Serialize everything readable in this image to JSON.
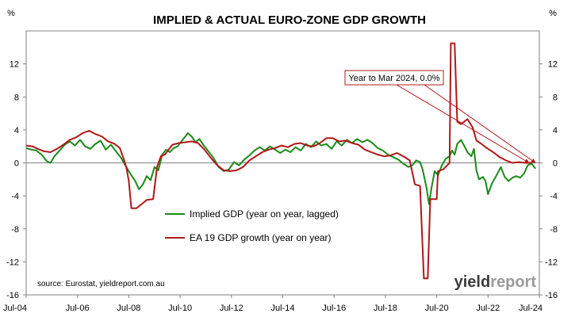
{
  "chart_data": {
    "type": "line",
    "title": "IMPLIED & ACTUAL EURO-ZONE GDP GROWTH",
    "left_unit": "%",
    "right_unit": "%",
    "ylim": [
      -16,
      16
    ],
    "y_ticks": [
      {
        "value": 12,
        "label": "12"
      },
      {
        "value": 8,
        "label": "8"
      },
      {
        "value": 4,
        "label": "4"
      },
      {
        "value": 0,
        "label": "0"
      },
      {
        "value": -4,
        "label": "-4"
      },
      {
        "value": -8,
        "label": "-8"
      },
      {
        "value": -12,
        "label": "-12"
      },
      {
        "value": -16,
        "label": "-16"
      }
    ],
    "xlim": [
      2004.5,
      2024.5
    ],
    "x_ticks": [
      {
        "value": 2004.5,
        "label": "Jul-04"
      },
      {
        "value": 2006.5,
        "label": "Jul-06"
      },
      {
        "value": 2008.5,
        "label": "Jul-08"
      },
      {
        "value": 2010.5,
        "label": "Jul-10"
      },
      {
        "value": 2012.5,
        "label": "Jul-12"
      },
      {
        "value": 2014.5,
        "label": "Jul-14"
      },
      {
        "value": 2016.5,
        "label": "Jul-16"
      },
      {
        "value": 2018.5,
        "label": "Jul-18"
      },
      {
        "value": 2020.5,
        "label": "Jul-20"
      },
      {
        "value": 2022.5,
        "label": "Jul-22"
      },
      {
        "value": 2024.5,
        "label": "Jul-24"
      }
    ],
    "series": [
      {
        "name": "Implied GDP (year on year, lagged)",
        "color": "#1a8a1a",
        "points": [
          [
            2004.5,
            1.8
          ],
          [
            2004.7,
            1.6
          ],
          [
            2004.9,
            1.5
          ],
          [
            2005.1,
            1.0
          ],
          [
            2005.3,
            0.2
          ],
          [
            2005.45,
            0.0
          ],
          [
            2005.6,
            0.8
          ],
          [
            2005.8,
            1.5
          ],
          [
            2006.0,
            2.2
          ],
          [
            2006.2,
            2.6
          ],
          [
            2006.4,
            2.1
          ],
          [
            2006.6,
            2.8
          ],
          [
            2006.8,
            2.0
          ],
          [
            2007.0,
            1.7
          ],
          [
            2007.2,
            2.3
          ],
          [
            2007.4,
            2.7
          ],
          [
            2007.6,
            1.6
          ],
          [
            2007.8,
            2.2
          ],
          [
            2008.0,
            1.4
          ],
          [
            2008.2,
            0.6
          ],
          [
            2008.4,
            -0.5
          ],
          [
            2008.6,
            -1.5
          ],
          [
            2008.75,
            -2.2
          ],
          [
            2008.9,
            -3.2
          ],
          [
            2009.05,
            -2.6
          ],
          [
            2009.2,
            -1.6
          ],
          [
            2009.35,
            -2.1
          ],
          [
            2009.5,
            -0.5
          ],
          [
            2009.65,
            -0.9
          ],
          [
            2009.8,
            1.0
          ],
          [
            2009.95,
            1.6
          ],
          [
            2010.1,
            1.3
          ],
          [
            2010.25,
            1.8
          ],
          [
            2010.4,
            2.0
          ],
          [
            2010.55,
            2.6
          ],
          [
            2010.7,
            3.2
          ],
          [
            2010.8,
            3.6
          ],
          [
            2010.95,
            3.2
          ],
          [
            2011.1,
            2.5
          ],
          [
            2011.25,
            2.9
          ],
          [
            2011.4,
            2.2
          ],
          [
            2011.6,
            1.4
          ],
          [
            2011.8,
            0.6
          ],
          [
            2012.0,
            -0.5
          ],
          [
            2012.2,
            -1.0
          ],
          [
            2012.4,
            -0.8
          ],
          [
            2012.6,
            0.1
          ],
          [
            2012.8,
            -0.3
          ],
          [
            2013.0,
            0.4
          ],
          [
            2013.2,
            0.9
          ],
          [
            2013.4,
            1.5
          ],
          [
            2013.6,
            1.9
          ],
          [
            2013.8,
            1.5
          ],
          [
            2014.0,
            2.0
          ],
          [
            2014.2,
            1.6
          ],
          [
            2014.4,
            1.2
          ],
          [
            2014.6,
            1.6
          ],
          [
            2014.8,
            1.3
          ],
          [
            2015.0,
            1.9
          ],
          [
            2015.2,
            1.5
          ],
          [
            2015.4,
            2.3
          ],
          [
            2015.6,
            1.9
          ],
          [
            2015.8,
            2.6
          ],
          [
            2016.0,
            2.1
          ],
          [
            2016.2,
            2.3
          ],
          [
            2016.4,
            1.7
          ],
          [
            2016.6,
            2.6
          ],
          [
            2016.8,
            2.1
          ],
          [
            2017.0,
            2.8
          ],
          [
            2017.2,
            2.4
          ],
          [
            2017.4,
            2.9
          ],
          [
            2017.6,
            2.5
          ],
          [
            2017.8,
            2.8
          ],
          [
            2018.0,
            2.4
          ],
          [
            2018.2,
            1.8
          ],
          [
            2018.4,
            1.5
          ],
          [
            2018.6,
            1.0
          ],
          [
            2018.8,
            0.7
          ],
          [
            2019.0,
            0.4
          ],
          [
            2019.2,
            -0.1
          ],
          [
            2019.4,
            -0.5
          ],
          [
            2019.55,
            -0.3
          ],
          [
            2019.7,
            0.3
          ],
          [
            2019.85,
            0.1
          ],
          [
            2019.95,
            -0.8
          ],
          [
            2020.1,
            -3.0
          ],
          [
            2020.2,
            -5.0
          ],
          [
            2020.3,
            -3.0
          ],
          [
            2020.42,
            -1.0
          ],
          [
            2020.55,
            -1.5
          ],
          [
            2020.7,
            -0.3
          ],
          [
            2020.85,
            0.5
          ],
          [
            2021.0,
            0.8
          ],
          [
            2021.1,
            1.5
          ],
          [
            2021.2,
            1.0
          ],
          [
            2021.3,
            2.3
          ],
          [
            2021.45,
            2.8
          ],
          [
            2021.55,
            2.2
          ],
          [
            2021.7,
            1.3
          ],
          [
            2021.85,
            0.8
          ],
          [
            2021.95,
            1.7
          ],
          [
            2022.05,
            -0.9
          ],
          [
            2022.15,
            -2.0
          ],
          [
            2022.3,
            -1.7
          ],
          [
            2022.4,
            -2.2
          ],
          [
            2022.5,
            -3.8
          ],
          [
            2022.65,
            -2.5
          ],
          [
            2022.85,
            -1.4
          ],
          [
            2023.0,
            -0.5
          ],
          [
            2023.15,
            -1.7
          ],
          [
            2023.3,
            -2.2
          ],
          [
            2023.45,
            -1.8
          ],
          [
            2023.6,
            -1.6
          ],
          [
            2023.75,
            -1.8
          ],
          [
            2023.9,
            -1.3
          ],
          [
            2024.05,
            -0.3
          ],
          [
            2024.2,
            -0.1
          ],
          [
            2024.35,
            -0.7
          ]
        ]
      },
      {
        "name": "EA 19 GDP growth (year on year)",
        "color": "#b01818",
        "points": [
          [
            2004.5,
            2.1
          ],
          [
            2004.75,
            2.0
          ],
          [
            2004.95,
            1.7
          ],
          [
            2005.2,
            1.4
          ],
          [
            2005.45,
            1.3
          ],
          [
            2005.7,
            1.7
          ],
          [
            2005.95,
            2.2
          ],
          [
            2006.2,
            2.8
          ],
          [
            2006.45,
            3.1
          ],
          [
            2006.7,
            3.6
          ],
          [
            2006.95,
            3.9
          ],
          [
            2007.2,
            3.5
          ],
          [
            2007.45,
            3.2
          ],
          [
            2007.7,
            2.6
          ],
          [
            2007.95,
            2.3
          ],
          [
            2008.15,
            1.8
          ],
          [
            2008.3,
            0.5
          ],
          [
            2008.4,
            -0.5
          ],
          [
            2008.5,
            -2.2
          ],
          [
            2008.6,
            -5.5
          ],
          [
            2008.8,
            -5.5
          ],
          [
            2009.0,
            -5.0
          ],
          [
            2009.2,
            -4.5
          ],
          [
            2009.45,
            -4.4
          ],
          [
            2009.6,
            -0.5
          ],
          [
            2009.75,
            0.8
          ],
          [
            2009.9,
            1.0
          ],
          [
            2010.2,
            2.2
          ],
          [
            2010.45,
            2.4
          ],
          [
            2010.7,
            2.5
          ],
          [
            2010.95,
            2.6
          ],
          [
            2011.2,
            2.4
          ],
          [
            2011.45,
            1.6
          ],
          [
            2011.7,
            0.6
          ],
          [
            2011.95,
            -0.3
          ],
          [
            2012.2,
            -0.9
          ],
          [
            2012.45,
            -1.0
          ],
          [
            2012.7,
            -0.9
          ],
          [
            2012.95,
            -0.5
          ],
          [
            2013.2,
            0.3
          ],
          [
            2013.45,
            0.8
          ],
          [
            2013.7,
            1.3
          ],
          [
            2013.95,
            1.6
          ],
          [
            2014.2,
            1.8
          ],
          [
            2014.45,
            2.1
          ],
          [
            2014.7,
            1.9
          ],
          [
            2014.95,
            2.3
          ],
          [
            2015.2,
            2.4
          ],
          [
            2015.45,
            2.1
          ],
          [
            2015.7,
            2.0
          ],
          [
            2015.95,
            2.4
          ],
          [
            2016.2,
            3.0
          ],
          [
            2016.45,
            3.0
          ],
          [
            2016.7,
            2.6
          ],
          [
            2016.95,
            2.7
          ],
          [
            2017.2,
            2.4
          ],
          [
            2017.45,
            2.2
          ],
          [
            2017.7,
            1.6
          ],
          [
            2017.95,
            1.3
          ],
          [
            2018.2,
            1.0
          ],
          [
            2018.45,
            0.8
          ],
          [
            2018.7,
            0.9
          ],
          [
            2018.95,
            1.2
          ],
          [
            2019.2,
            0.8
          ],
          [
            2019.45,
            0.3
          ],
          [
            2019.65,
            -2.6
          ],
          [
            2019.85,
            -2.8
          ],
          [
            2020.0,
            -14.0
          ],
          [
            2020.15,
            -14.0
          ],
          [
            2020.25,
            -4.4
          ],
          [
            2020.5,
            -4.4
          ],
          [
            2020.55,
            -1.0
          ],
          [
            2020.75,
            -0.8
          ],
          [
            2021.0,
            0.0
          ],
          [
            2021.05,
            14.5
          ],
          [
            2021.2,
            14.5
          ],
          [
            2021.3,
            5.0
          ],
          [
            2021.45,
            4.7
          ],
          [
            2021.7,
            5.3
          ],
          [
            2021.9,
            4.3
          ],
          [
            2022.05,
            2.7
          ],
          [
            2022.2,
            2.4
          ],
          [
            2022.45,
            1.8
          ],
          [
            2022.7,
            1.3
          ],
          [
            2022.95,
            0.7
          ],
          [
            2023.2,
            0.3
          ],
          [
            2023.45,
            0.0
          ],
          [
            2023.7,
            0.1
          ],
          [
            2023.95,
            0.0
          ],
          [
            2024.2,
            0.0
          ]
        ]
      }
    ],
    "annotation": {
      "label": "Year to Mar 2024, 0.0%",
      "targets": [
        [
          2024.1,
          0.0
        ],
        [
          2024.35,
          0.0
        ]
      ]
    },
    "source": "source: Eurostat, yieldreport.com.au",
    "grid": false,
    "legend_position": "bottom-center"
  },
  "brand": {
    "part1": "yield",
    "part2": "report"
  }
}
